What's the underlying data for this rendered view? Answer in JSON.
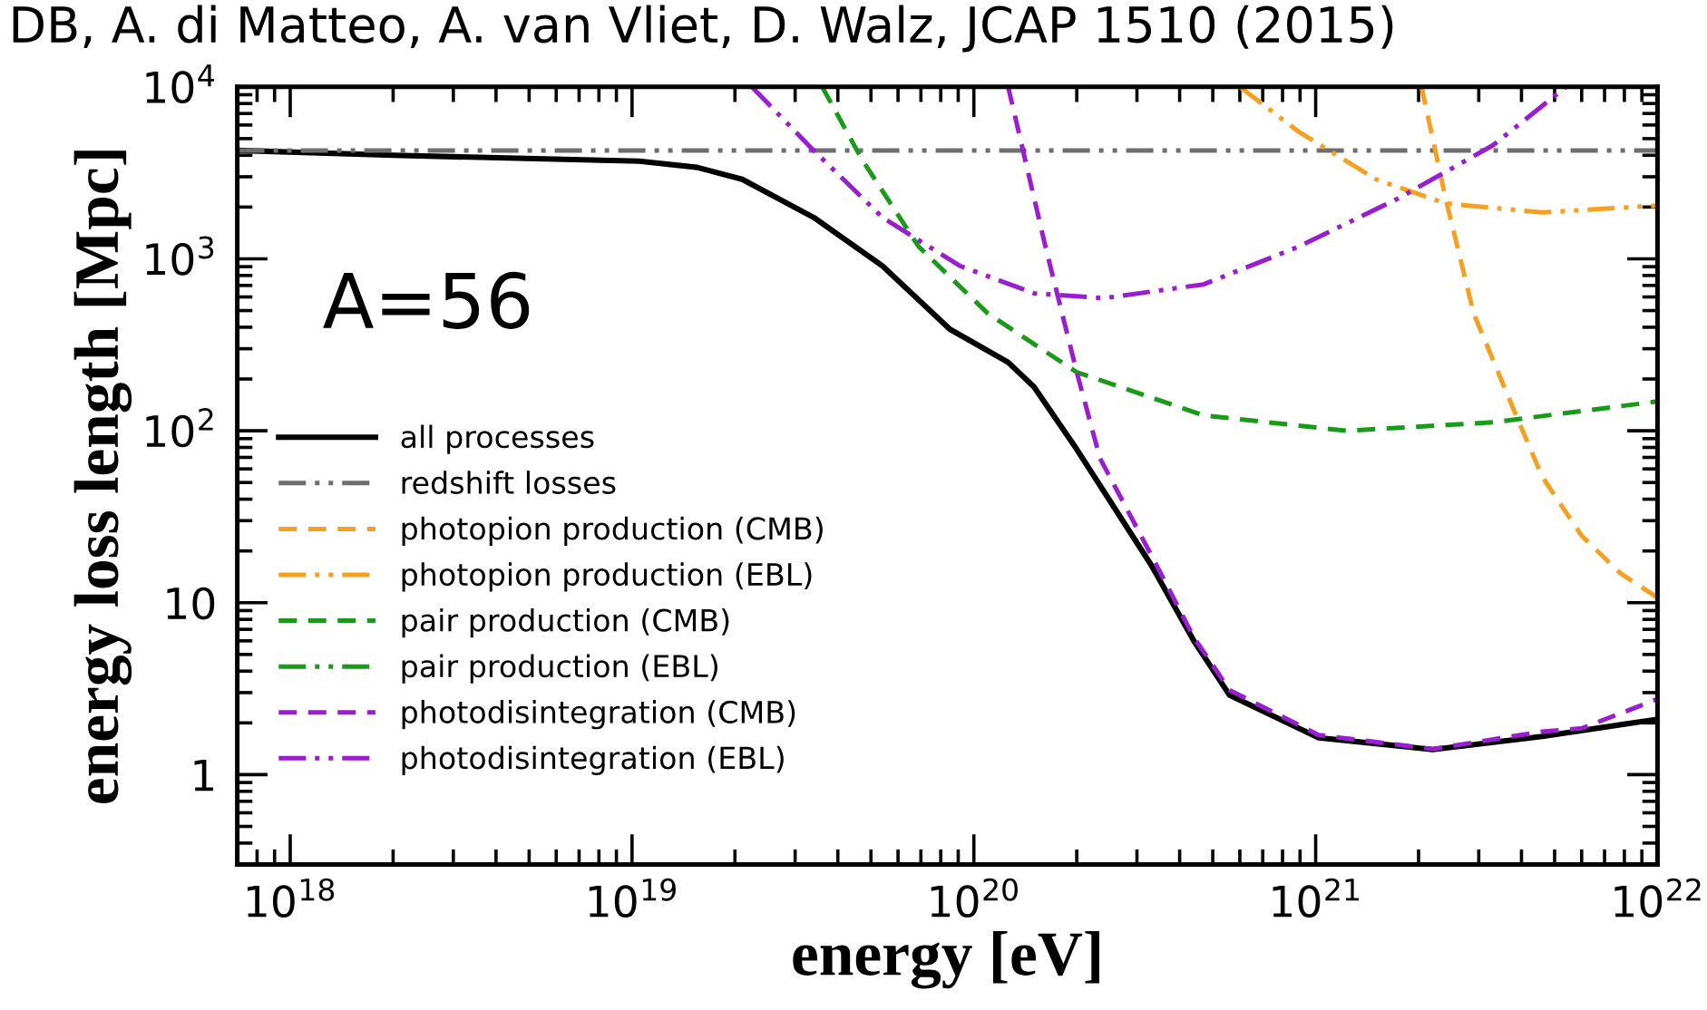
{
  "chart_data": {
    "type": "line",
    "title": "DB, A. di Matteo, A. van Vliet, D. Walz, JCAP 1510 (2015)",
    "xlabel": "energy [eV]",
    "ylabel": "energy loss length [Mpc]",
    "annotations": [
      "A=56"
    ],
    "log": "xy",
    "grid": false,
    "legend": "bottom left",
    "marker": "none",
    "xlim": [
      7e+17,
      1e+22
    ],
    "xticks": [
      {
        "value": 1e+18,
        "label": "10$^{18}$"
      },
      {
        "value": 1e+19,
        "label": "10$^{19}$"
      },
      {
        "value": 1e+20,
        "label": "10$^{20}$"
      },
      {
        "value": 1e+21,
        "label": "10$^{21}$"
      },
      {
        "value": 1e+22,
        "label": "10$^{22}$"
      }
    ],
    "ylim": [
      0.3,
      10000
    ],
    "yticks": [
      1,
      10,
      {
        "value": 100,
        "label": "10$^{2}$"
      },
      {
        "value": 1000,
        "label": "10$^{3}$"
      },
      {
        "value": 10000,
        "label": "10$^{4}$"
      }
    ],
    "series": [
      {
        "name": "all processes",
        "color": "#000000",
        "line_style": "solid",
        "x": [
          7e+17,
          2e+18,
          1.05e+19,
          1.55e+19,
          2.1e+19,
          3.4e+19,
          5.4e+19,
          8.5e+19,
          1.26e+20,
          1.5e+20,
          2e+20,
          3.3e+20,
          4.4e+20,
          5.6e+20,
          1.02e+21,
          2.2e+21,
          4.6e+21,
          1e+22
        ],
        "values": [
          4270,
          4000,
          3700,
          3400,
          2900,
          1740,
          910,
          390,
          250,
          180,
          78,
          16.6,
          6.0,
          2.9,
          1.64,
          1.4,
          1.67,
          2.1
        ]
      },
      {
        "name": "redshift losses",
        "color": "#6e6e6e",
        "line_style": "dashdot",
        "x": [
          7e+17,
          1e+22
        ],
        "values": [
          4270,
          4270
        ]
      },
      {
        "name": "photopion production (CMB)",
        "color": "#f5a020",
        "line_style": "dashed",
        "x": [
          2.04e+21,
          2.4e+21,
          2.9e+21,
          3.8e+21,
          4.6e+21,
          6e+21,
          7.8e+21,
          1e+22
        ],
        "values": [
          10000,
          2240,
          480,
          132,
          54,
          24.5,
          14.8,
          10.7
        ]
      },
      {
        "name": "photopion production (EBL)",
        "color": "#f5a020",
        "line_style": "dashdot",
        "x": [
          6e+20,
          8.9e+20,
          1.5e+21,
          2.4e+21,
          4.6e+21,
          1e+22
        ],
        "values": [
          10000,
          5500,
          2900,
          2100,
          1860,
          2040
        ]
      },
      {
        "name": "pair production (CMB)",
        "color": "#1a9a1a",
        "line_style": "dashed",
        "x": [
          3.6e+19,
          4.7e+19,
          6.9e+19,
          1.1e+20,
          2e+20,
          4.7e+20,
          1.23e+21,
          3.3e+21,
          1e+22
        ],
        "values": [
          10000,
          3800,
          1175,
          480,
          219,
          123,
          100,
          112,
          148
        ]
      },
      {
        "name": "pair production (EBL)",
        "color": "#1a9a1a",
        "line_style": "dashdot"
      },
      {
        "name": "photodisintegration (CMB)",
        "color": "#9a1ed0",
        "line_style": "dashed",
        "x": [
          1.26e+20,
          1.62e+20,
          2e+20,
          2.34e+20,
          3.3e+20,
          4.4e+20,
          5.6e+20,
          1.02e+21,
          2.2e+21,
          4.6e+21,
          6e+21,
          1e+22
        ],
        "values": [
          10000,
          1175,
          219,
          69,
          19,
          6.3,
          3.1,
          1.7,
          1.41,
          1.78,
          1.86,
          2.75
        ]
      },
      {
        "name": "photodisintegration (EBL)",
        "color": "#9a1ed0",
        "line_style": "dashdot",
        "x": [
          2.24e+19,
          3.4e+19,
          5.4e+19,
          9.1e+19,
          1.5e+20,
          2.4e+20,
          4.7e+20,
          8.9e+20,
          1.74e+21,
          3.3e+21,
          5.4e+21
        ],
        "values": [
          10000,
          4270,
          1740,
          910,
          630,
          590,
          710,
          1175,
          2240,
          4570,
          10000
        ]
      }
    ]
  }
}
